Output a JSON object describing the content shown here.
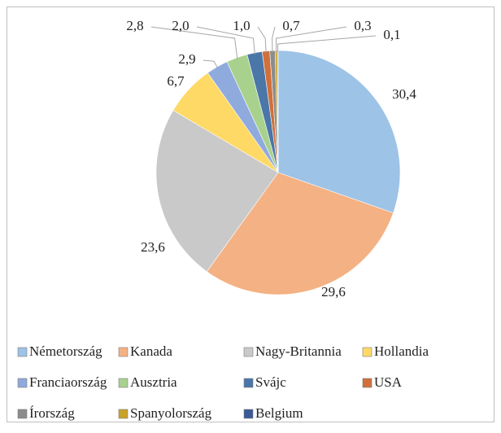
{
  "chart_data": {
    "type": "pie",
    "categories": [
      "Németország",
      "Kanada",
      "Nagy-Britannia",
      "Hollandia",
      "Franciaország",
      "Ausztria",
      "Svájc",
      "USA",
      "Írország",
      "Spanyolország",
      "Belgium"
    ],
    "values": [
      30.4,
      29.6,
      23.6,
      6.7,
      2.9,
      2.8,
      2.0,
      1.0,
      0.7,
      0.3,
      0.1
    ],
    "value_labels": [
      "30,4",
      "29,6",
      "23,6",
      "6,7",
      "2,9",
      "2,8",
      "2,0",
      "1,0",
      "0,7",
      "0,3",
      "0,1"
    ],
    "colors": [
      "#9dc3e6",
      "#f4b183",
      "#c9c9c9",
      "#ffd966",
      "#8faadc",
      "#a9d18e",
      "#4a76a8",
      "#d0703a",
      "#8c8c8c",
      "#c9a227",
      "#3b5998"
    ],
    "legend": "bottom"
  }
}
